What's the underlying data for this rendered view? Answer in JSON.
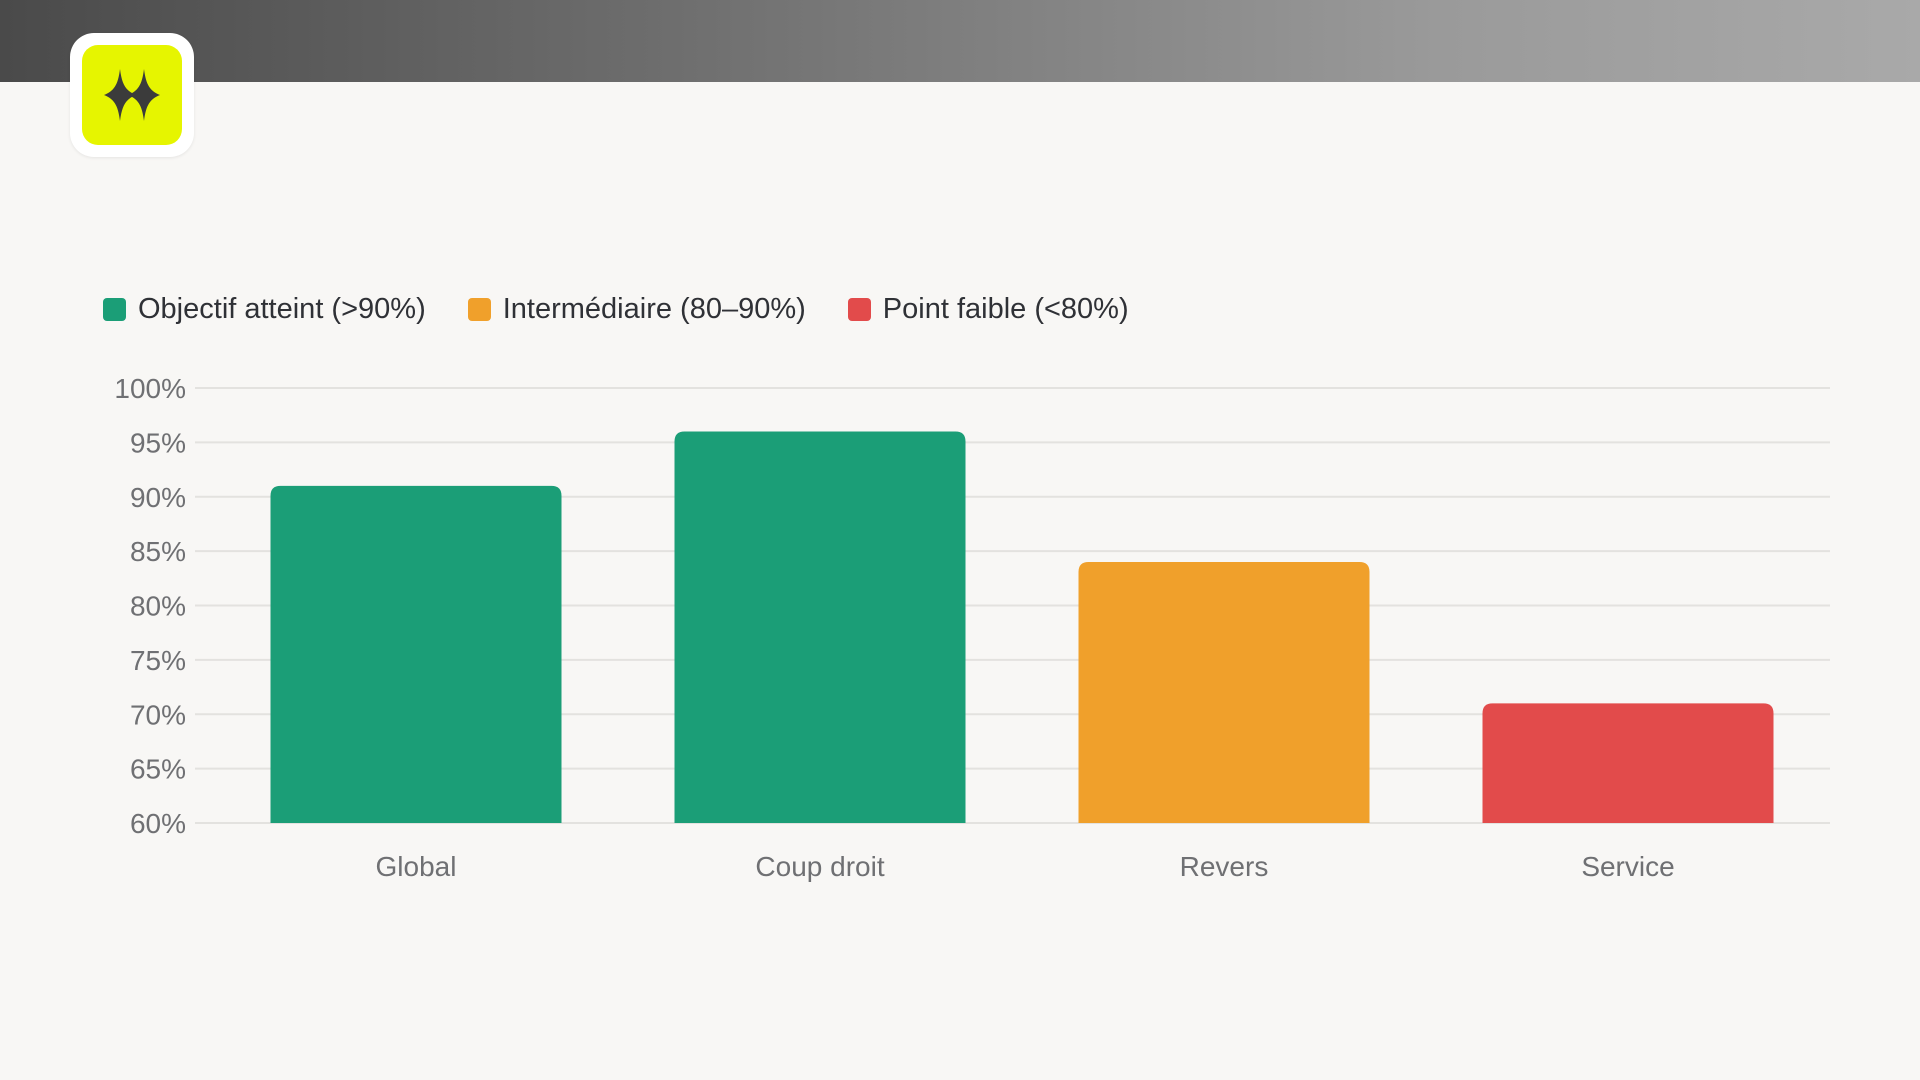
{
  "logo": {
    "icon": "sparkle-icon",
    "background": "#e6f500",
    "icon_color": "#3b3b3b"
  },
  "legend": [
    {
      "label": "Objectif atteint (>90%)",
      "color": "#1b9e77"
    },
    {
      "label": "Intermédiaire (80–90%)",
      "color": "#f0a02b"
    },
    {
      "label": "Point faible (<80%)",
      "color": "#e24b4b"
    }
  ],
  "chart_data": {
    "type": "bar",
    "categories": [
      "Global",
      "Coup droit",
      "Revers",
      "Service"
    ],
    "values": [
      91,
      96,
      84,
      71
    ],
    "colors": [
      "#1b9e77",
      "#1b9e77",
      "#f0a02b",
      "#e24b4b"
    ],
    "ylim": [
      60,
      100
    ],
    "yticks": [
      60,
      65,
      70,
      75,
      80,
      85,
      90,
      95,
      100
    ],
    "ytick_labels": [
      "60%",
      "65%",
      "70%",
      "75%",
      "80%",
      "85%",
      "90%",
      "95%",
      "100%"
    ],
    "grid": true,
    "legend_position": "top-left"
  }
}
